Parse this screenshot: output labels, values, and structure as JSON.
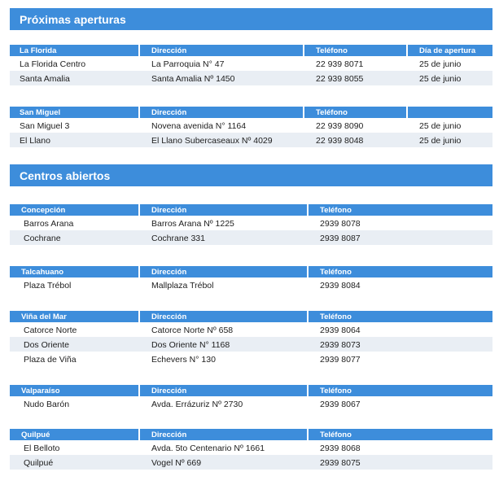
{
  "proximas": {
    "title": "Próximas aperturas",
    "groups": [
      {
        "header": [
          "La Florida",
          "Dirección",
          "Teléfono",
          "Día de apertura"
        ],
        "rows": [
          [
            "La Florida Centro",
            "La Parroquia N° 47",
            "22 939 8071",
            "25 de junio"
          ],
          [
            "Santa Amalia",
            "Santa Amalia Nº 1450",
            "22 939 8055",
            "25 de junio"
          ]
        ]
      },
      {
        "header": [
          "San Miguel",
          "Dirección",
          "Teléfono",
          ""
        ],
        "rows": [
          [
            "San Miguel 3",
            "Novena avenida N° 1164",
            "22 939 8090",
            "25 de junio"
          ],
          [
            "El Llano",
            "El Llano Subercaseaux Nº 4029",
            "22 939 8048",
            "25 de junio"
          ]
        ]
      }
    ]
  },
  "centros": {
    "title": "Centros abiertos",
    "groups": [
      {
        "header": [
          "Concepción",
          "Dirección",
          "Teléfono"
        ],
        "rows": [
          [
            "Barros Arana",
            "Barros Arana Nº 1225",
            "2939 8078"
          ],
          [
            "Cochrane",
            "Cochrane 331",
            "2939 8087"
          ]
        ]
      },
      {
        "header": [
          "Talcahuano",
          "Dirección",
          "Teléfono"
        ],
        "rows": [
          [
            "Plaza Trébol",
            "Mallplaza Trébol",
            "2939 8084"
          ]
        ]
      },
      {
        "header": [
          "Viña del Mar",
          "Dirección",
          "Teléfono"
        ],
        "rows": [
          [
            "Catorce Norte",
            "Catorce Norte Nº 658",
            "2939 8064"
          ],
          [
            "Dos Oriente",
            "Dos Oriente N° 1168",
            "2939 8073"
          ],
          [
            "Plaza de Viña",
            "Echevers N° 130",
            "2939 8077"
          ]
        ]
      },
      {
        "header": [
          "Valparaíso",
          "Dirección",
          "Teléfono"
        ],
        "rows": [
          [
            "Nudo Barón",
            "Avda. Errázuriz Nº 2730",
            "2939 8067"
          ]
        ]
      },
      {
        "header": [
          "Quilpué",
          "Dirección",
          "Teléfono"
        ],
        "rows": [
          [
            "El Belloto",
            "Avda. 5to Centenario Nº 1661",
            "2939 8068"
          ],
          [
            "Quilpué",
            "Vogel Nº 669",
            "2939 8075"
          ]
        ]
      }
    ]
  }
}
